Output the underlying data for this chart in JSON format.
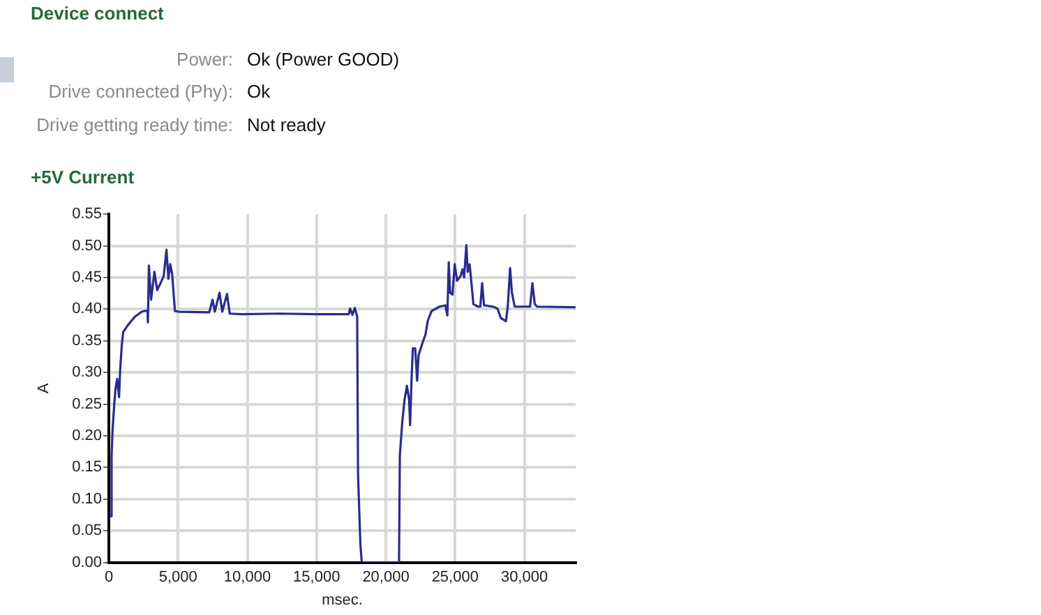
{
  "chart_data": [
    {
      "type": "other",
      "title": "Device connect",
      "annotations": [
        "Power:",
        "Ok (Power GOOD)",
        "Drive connected (Phy):",
        "Ok",
        "Drive getting ready time:",
        "Not ready"
      ]
    },
    {
      "type": "line",
      "title": "+5V Current",
      "xlabel": "msec.",
      "ylabel": "A",
      "xlim": [
        0,
        33700
      ],
      "ylim": [
        0,
        0.55
      ],
      "xticks": [
        0,
        {
          "value": 5000,
          "label": "5,000"
        },
        {
          "value": 10000,
          "label": "10,000"
        },
        {
          "value": 15000,
          "label": "15,000"
        },
        {
          "value": 20000,
          "label": "20,000"
        },
        {
          "value": 25000,
          "label": "25,000"
        },
        {
          "value": 30000,
          "label": "30,000"
        }
      ],
      "yticks": [
        {
          "value": 0,
          "label": "0.00"
        },
        {
          "value": 0.05,
          "label": "0.05"
        },
        {
          "value": 0.1,
          "label": "0.10"
        },
        {
          "value": 0.15,
          "label": "0.15"
        },
        {
          "value": 0.2,
          "label": "0.20"
        },
        {
          "value": 0.25,
          "label": "0.25"
        },
        {
          "value": 0.3,
          "label": "0.30"
        },
        {
          "value": 0.35,
          "label": "0.35"
        },
        {
          "value": 0.4,
          "label": "0.40"
        },
        {
          "value": 0.45,
          "label": "0.45"
        },
        {
          "value": 0.5,
          "label": "0.50"
        },
        {
          "value": 0.55,
          "label": "0.55"
        }
      ],
      "grid": true,
      "legend": false,
      "series": [
        {
          "color": "#2b2b8e",
          "x": [
            130,
            200,
            270,
            370,
            470,
            600,
            740,
            810,
            940,
            1040,
            1380,
            1880,
            2380,
            2790,
            2820,
            2890,
            3050,
            3290,
            3490,
            3730,
            3960,
            4160,
            4300,
            4430,
            4570,
            4770,
            5070,
            7250,
            7490,
            7650,
            7990,
            8190,
            8530,
            8730,
            9600,
            12290,
            15000,
            17320,
            17420,
            17590,
            17760,
            17930,
            17990,
            18160,
            18260,
            20950,
            21010,
            21180,
            21350,
            21520,
            21680,
            21750,
            21850,
            21950,
            22120,
            22260,
            22360,
            22620,
            22860,
            23030,
            23300,
            23870,
            24300,
            24440,
            24540,
            24640,
            24810,
            24970,
            25140,
            25380,
            25540,
            25650,
            25810,
            25910,
            26050,
            26320,
            26650,
            26820,
            26950,
            27090,
            27730,
            28060,
            28300,
            28670,
            28800,
            28970,
            29100,
            29300,
            30410,
            30580,
            30750,
            30920,
            33650
          ],
          "values": [
            0.073,
            0.169,
            0.21,
            0.243,
            0.272,
            0.29,
            0.261,
            0.301,
            0.345,
            0.364,
            0.375,
            0.388,
            0.396,
            0.398,
            0.379,
            0.469,
            0.415,
            0.459,
            0.43,
            0.441,
            0.452,
            0.494,
            0.448,
            0.471,
            0.456,
            0.397,
            0.396,
            0.395,
            0.415,
            0.396,
            0.426,
            0.396,
            0.424,
            0.393,
            0.392,
            0.393,
            0.392,
            0.392,
            0.401,
            0.391,
            0.402,
            0.388,
            0.14,
            0.029,
            0,
            0,
            0.169,
            0.221,
            0.257,
            0.279,
            0.257,
            0.217,
            0.287,
            0.338,
            0.338,
            0.287,
            0.327,
            0.345,
            0.36,
            0.382,
            0.397,
            0.404,
            0.406,
            0.39,
            0.474,
            0.426,
            0.423,
            0.471,
            0.445,
            0.452,
            0.463,
            0.45,
            0.501,
            0.459,
            0.471,
            0.408,
            0.404,
            0.404,
            0.441,
            0.406,
            0.404,
            0.401,
            0.386,
            0.381,
            0.404,
            0.465,
            0.426,
            0.404,
            0.404,
            0.441,
            0.408,
            0.404,
            0.403
          ]
        }
      ]
    }
  ]
}
